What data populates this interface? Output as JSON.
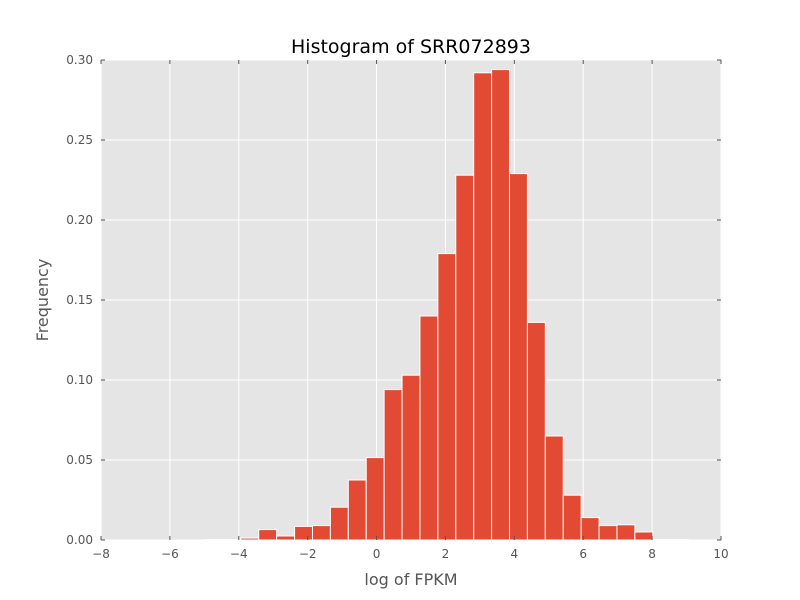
{
  "chart_data": {
    "type": "bar",
    "title": "Histogram of SRR072893",
    "xlabel": "log of FPKM",
    "ylabel": "Frequency",
    "xlim": [
      -8,
      10
    ],
    "ylim": [
      0,
      0.3
    ],
    "x_ticks": [
      -8,
      -6,
      -4,
      -2,
      0,
      2,
      4,
      6,
      8,
      10
    ],
    "x_tick_labels": [
      "−8",
      "−6",
      "−4",
      "−2",
      "0",
      "2",
      "4",
      "6",
      "8",
      "10"
    ],
    "y_ticks": [
      0.0,
      0.05,
      0.1,
      0.15,
      0.2,
      0.25,
      0.3
    ],
    "y_tick_labels": [
      "0.00",
      "0.05",
      "0.10",
      "0.15",
      "0.20",
      "0.25",
      "0.30"
    ],
    "grid": true,
    "bin_edges": [
      -4.98,
      -4.46,
      -3.94,
      -3.42,
      -2.9,
      -2.38,
      -1.86,
      -1.34,
      -0.82,
      -0.3,
      0.22,
      0.74,
      1.26,
      1.78,
      2.3,
      2.82,
      3.34,
      3.86,
      4.38,
      4.9,
      5.42,
      5.94,
      6.46,
      6.98,
      7.5,
      8.02,
      8.54,
      9.06
    ],
    "values": [
      0.0003,
      0.0003,
      0.0012,
      0.0065,
      0.0025,
      0.0085,
      0.009,
      0.0205,
      0.0375,
      0.0515,
      0.094,
      0.103,
      0.14,
      0.179,
      0.228,
      0.292,
      0.294,
      0.229,
      0.136,
      0.065,
      0.028,
      0.014,
      0.009,
      0.0095,
      0.005,
      0.0003,
      0.0003
    ],
    "colors": {
      "bar": "#e24a33",
      "bar_edge": "#ffffff",
      "plot_background": "#e5e5e5",
      "grid": "#ffffff",
      "text": "#555555",
      "title": "#000000"
    }
  }
}
